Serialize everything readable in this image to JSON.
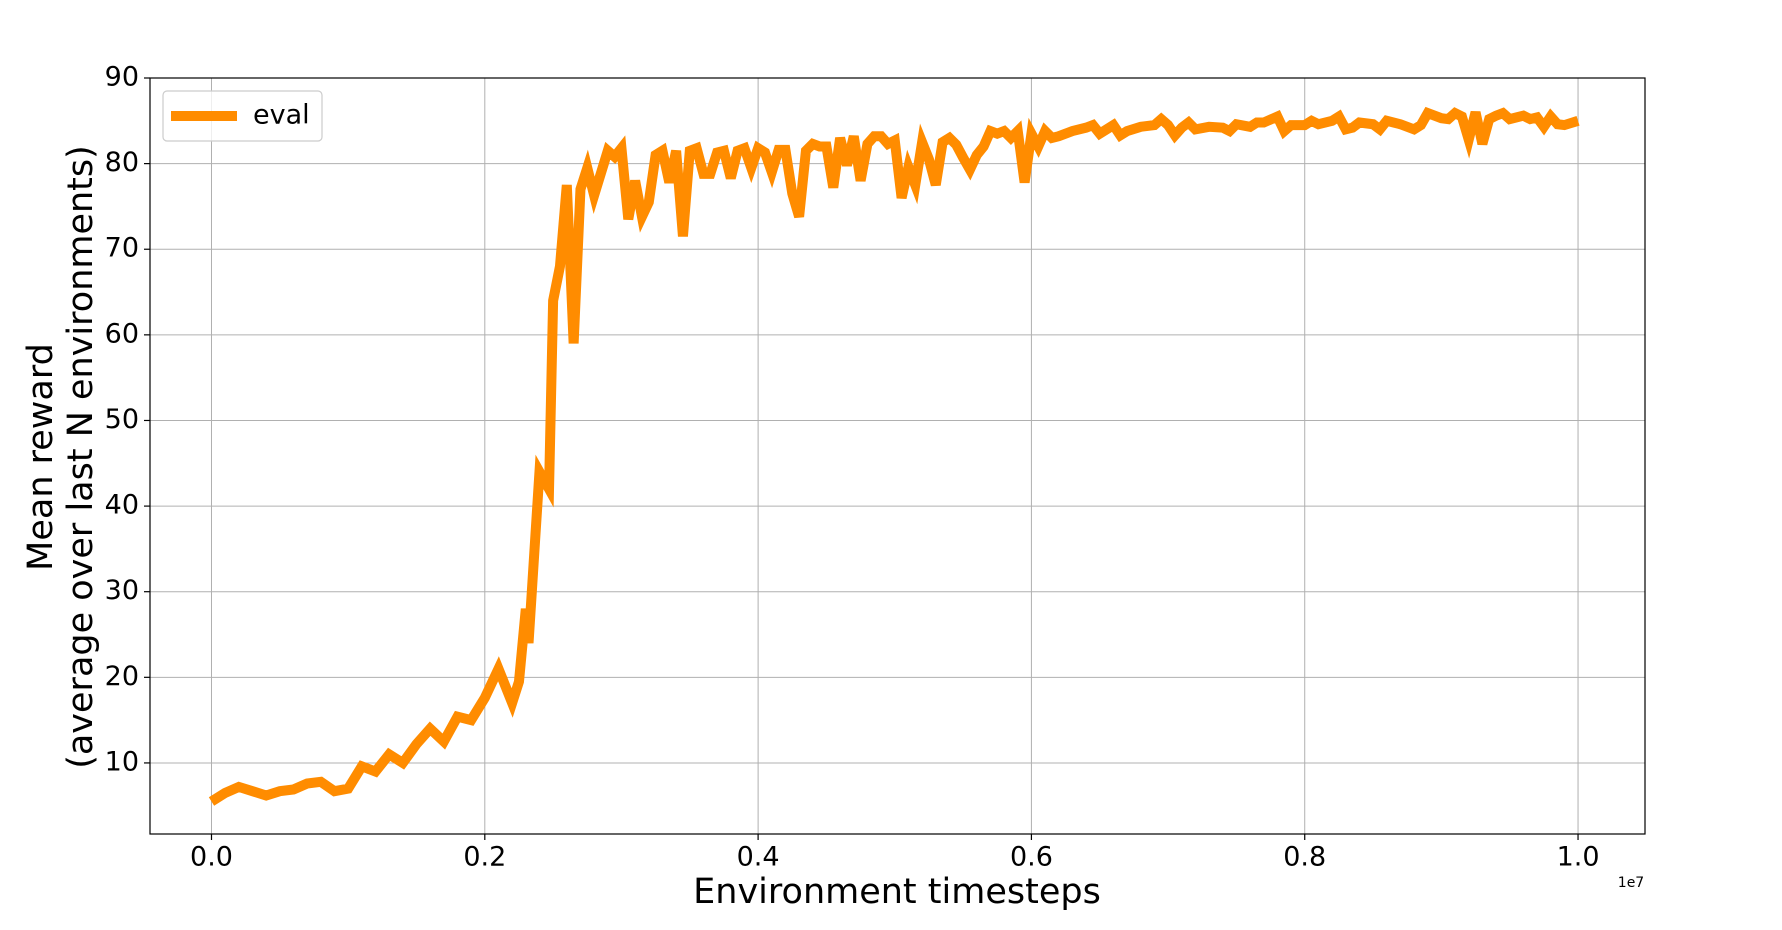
{
  "chart_data": {
    "type": "line",
    "xlabel": "Environment timesteps",
    "ylabel": [
      "Mean reward",
      "(average over last N environments)"
    ],
    "x_offset_text": "1e7",
    "x": [
      0,
      0.01,
      0.02,
      0.03,
      0.04,
      0.05,
      0.06,
      0.07,
      0.08,
      0.09,
      0.1,
      0.11,
      0.12,
      0.13,
      0.14,
      0.15,
      0.16,
      0.17,
      0.18,
      0.19,
      0.2,
      0.21,
      0.22,
      0.225,
      0.23,
      0.232,
      0.24,
      0.247,
      0.25,
      0.255,
      0.26,
      0.265,
      0.27,
      0.275,
      0.28,
      0.29,
      0.295,
      0.3,
      0.305,
      0.31,
      0.315,
      0.32,
      0.325,
      0.33,
      0.335,
      0.34,
      0.345,
      0.35,
      0.355,
      0.36,
      0.365,
      0.37,
      0.375,
      0.38,
      0.385,
      0.39,
      0.395,
      0.4,
      0.405,
      0.41,
      0.415,
      0.42,
      0.425,
      0.43,
      0.435,
      0.44,
      0.445,
      0.45,
      0.455,
      0.46,
      0.465,
      0.47,
      0.475,
      0.48,
      0.485,
      0.49,
      0.495,
      0.5,
      0.505,
      0.51,
      0.515,
      0.52,
      0.525,
      0.53,
      0.535,
      0.54,
      0.545,
      0.55,
      0.555,
      0.56,
      0.565,
      0.57,
      0.575,
      0.58,
      0.585,
      0.59,
      0.595,
      0.6,
      0.605,
      0.61,
      0.615,
      0.62,
      0.63,
      0.64,
      0.645,
      0.65,
      0.66,
      0.665,
      0.67,
      0.68,
      0.69,
      0.695,
      0.7,
      0.705,
      0.71,
      0.715,
      0.72,
      0.73,
      0.74,
      0.745,
      0.75,
      0.76,
      0.765,
      0.77,
      0.78,
      0.785,
      0.79,
      0.8,
      0.805,
      0.81,
      0.82,
      0.825,
      0.83,
      0.835,
      0.84,
      0.85,
      0.855,
      0.86,
      0.87,
      0.88,
      0.885,
      0.89,
      0.9,
      0.905,
      0.91,
      0.915,
      0.92,
      0.925,
      0.93,
      0.935,
      0.94,
      0.945,
      0.95,
      0.955,
      0.96,
      0.965,
      0.97,
      0.975,
      0.98,
      0.985,
      0.99,
      1.0
    ],
    "series": [
      {
        "name": "eval",
        "color": "#ff8c00",
        "values": [
          5.5,
          6.5,
          7.2,
          6.7,
          6.2,
          6.7,
          6.9,
          7.6,
          7.8,
          6.7,
          7.0,
          9.6,
          9.0,
          11.0,
          10.0,
          12.2,
          14.0,
          12.5,
          15.4,
          15.0,
          17.6,
          21.0,
          17.0,
          19.5,
          28,
          24,
          44,
          42,
          64,
          68,
          77.5,
          59,
          77,
          79.5,
          76.3,
          81.5,
          80.8,
          81.8,
          73.5,
          78,
          73.8,
          75.5,
          81,
          81.5,
          77.8,
          81.5,
          71.5,
          81.5,
          81.8,
          78.8,
          78.8,
          81.3,
          81.5,
          78.3,
          81.5,
          81.8,
          79.5,
          81.8,
          81.3,
          79.0,
          81.6,
          81.6,
          76.5,
          73.8,
          81.5,
          82.3,
          82.0,
          82.0,
          77.2,
          83.0,
          79.8,
          83.2,
          78.0,
          82.3,
          83.2,
          83.2,
          82.3,
          82.7,
          76.0,
          79.6,
          77.5,
          82.5,
          80.5,
          77.5,
          82.5,
          83.0,
          82.2,
          80.7,
          79.3,
          81.0,
          82.0,
          83.8,
          83.5,
          83.8,
          83.0,
          83.8,
          77.8,
          83.5,
          82.0,
          83.8,
          83.0,
          83.2,
          83.8,
          84.2,
          84.5,
          83.5,
          84.5,
          83.3,
          83.8,
          84.3,
          84.5,
          85.2,
          84.5,
          83.3,
          84.2,
          84.8,
          84.0,
          84.3,
          84.2,
          83.8,
          84.6,
          84.3,
          84.8,
          84.8,
          85.5,
          83.8,
          84.5,
          84.5,
          85.0,
          84.6,
          85.0,
          85.5,
          84.0,
          84.2,
          84.8,
          84.6,
          84.0,
          85.0,
          84.6,
          84.0,
          84.5,
          85.9,
          85.3,
          85.2,
          85.9,
          85.5,
          82.8,
          86.0,
          82.3,
          85.2,
          85.6,
          85.9,
          85.2,
          85.4,
          85.6,
          85.2,
          85.4,
          84.3,
          85.5,
          84.6,
          84.5,
          85.0
        ]
      }
    ],
    "xlim": [
      -0.045,
      1.049
    ],
    "ylim": [
      1.7,
      90
    ],
    "xticks": [
      {
        "value": 0,
        "label": "0.0"
      },
      0.2,
      0.4,
      0.6,
      0.8,
      {
        "value": 1,
        "label": "1.0"
      }
    ],
    "yticks": [
      10,
      20,
      30,
      40,
      50,
      60,
      70,
      80,
      90
    ],
    "grid": true,
    "legend": "upper left"
  }
}
